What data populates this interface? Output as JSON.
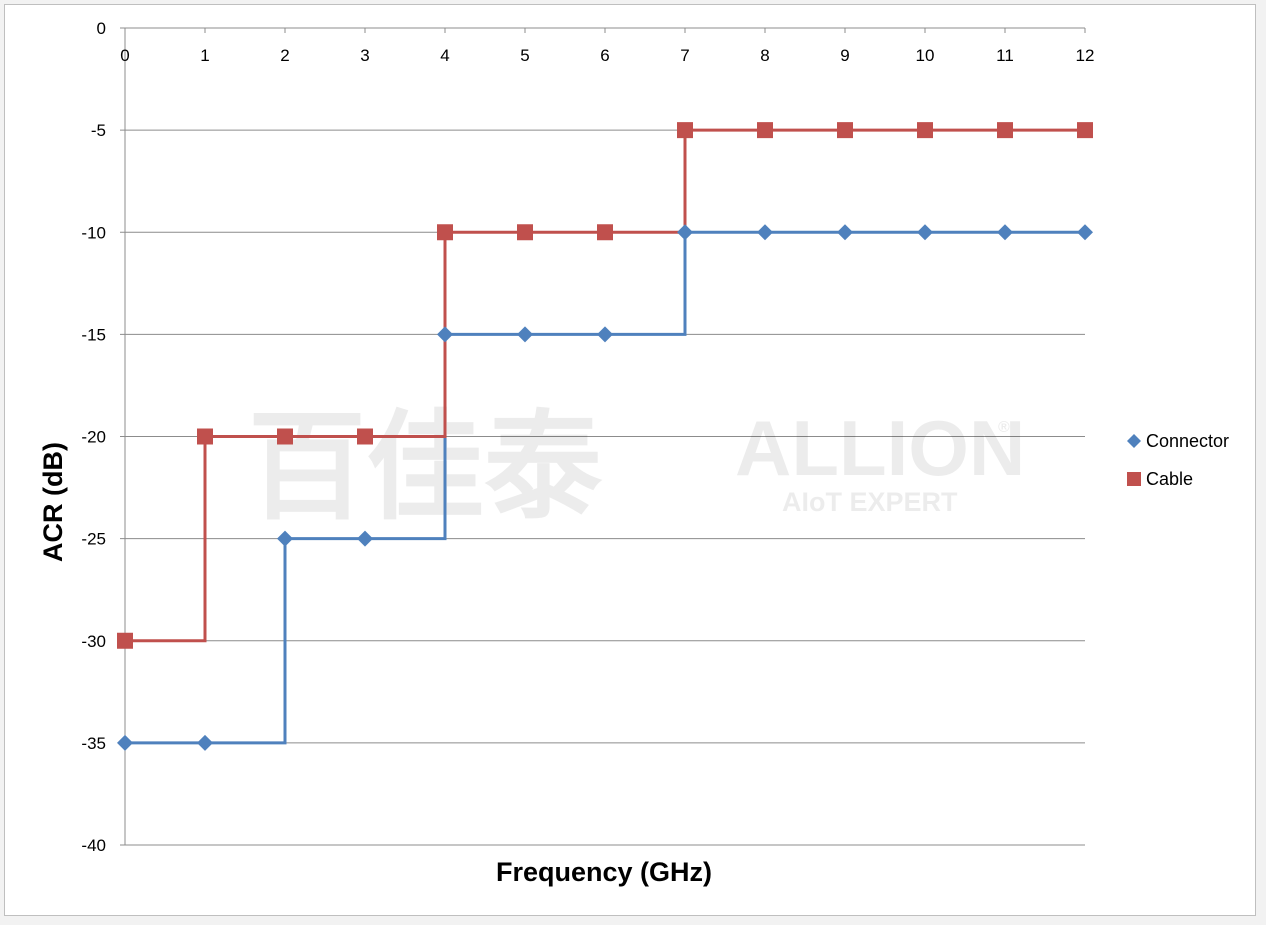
{
  "chart_data": {
    "type": "line",
    "step": true,
    "xlabel": "Frequency (GHz)",
    "ylabel": "ACR (dB)",
    "xlim": [
      0,
      12
    ],
    "ylim": [
      -40,
      0
    ],
    "x_ticks": [
      0,
      1,
      2,
      3,
      4,
      5,
      6,
      7,
      8,
      9,
      10,
      11,
      12
    ],
    "y_ticks": [
      0,
      -5,
      -10,
      -15,
      -20,
      -25,
      -30,
      -35,
      -40
    ],
    "x_axis_position": "top",
    "grid": "horizontal",
    "legend_position": "right",
    "series": [
      {
        "name": "Connector",
        "color": "#4f81bd",
        "marker": "diamond",
        "x": [
          0,
          1,
          2,
          3,
          4,
          5,
          6,
          7,
          8,
          9,
          10,
          11,
          12
        ],
        "y": [
          -35,
          -35,
          -25,
          -25,
          -15,
          -15,
          -15,
          -10,
          -10,
          -10,
          -10,
          -10,
          -10
        ]
      },
      {
        "name": "Cable",
        "color": "#c0504d",
        "marker": "square",
        "x": [
          0,
          1,
          2,
          3,
          4,
          5,
          6,
          7,
          8,
          9,
          10,
          11,
          12
        ],
        "y": [
          -30,
          -20,
          -20,
          -20,
          -10,
          -10,
          -10,
          -5,
          -5,
          -5,
          -5,
          -5,
          -5
        ]
      }
    ]
  },
  "watermark": {
    "chinese": "百佳泰",
    "brand": "ALLION",
    "tagline": "AIoT EXPERT",
    "registered": "®"
  }
}
